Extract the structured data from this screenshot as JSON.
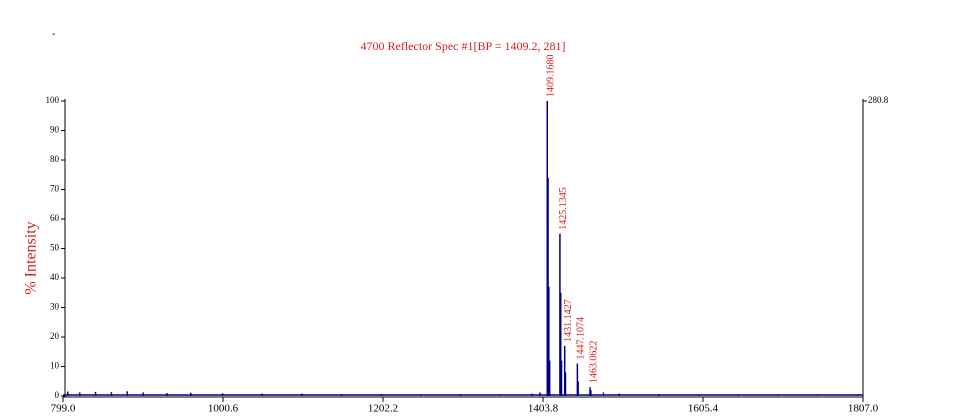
{
  "corner_text": "-",
  "chart_data": {
    "type": "spectrum",
    "title": "4700 Reflector Spec #1[BP = 1409.2, 281]",
    "ylabel": "% Intensity",
    "color": "#000080",
    "x": [
      805,
      820,
      840,
      860,
      880,
      900,
      930,
      960,
      1000,
      1050,
      1100,
      1150,
      1200,
      1250,
      1300,
      1350,
      1390,
      1400,
      1409.168,
      1410.17,
      1411.17,
      1412.17,
      1425.1345,
      1426.13,
      1427.13,
      1431.1427,
      1432.14,
      1447.1074,
      1448.11,
      1463.0622,
      1464.06,
      1480,
      1500,
      1550,
      1600,
      1650,
      1700,
      1750,
      1800
    ],
    "values": [
      1.5,
      1.2,
      1.4,
      1.3,
      1.6,
      1.2,
      1.0,
      1.1,
      0.9,
      0.8,
      0.8,
      0.6,
      0.6,
      0.5,
      0.6,
      0.5,
      0.8,
      1.2,
      100,
      74,
      37,
      12,
      55,
      35,
      12,
      17,
      8,
      11,
      5,
      3,
      2,
      1.2,
      0.8,
      0.6,
      0.5,
      0.4,
      0.3,
      0.3,
      0.3
    ],
    "annotations": [
      {
        "x": 1409.168,
        "y": 100,
        "text": "1409.1680"
      },
      {
        "x": 1425.1345,
        "y": 55,
        "text": "1425.1345"
      },
      {
        "x": 1431.1427,
        "y": 17,
        "text": "1431.1427"
      },
      {
        "x": 1447.1074,
        "y": 11,
        "text": "1447.1074"
      },
      {
        "x": 1463.0622,
        "y": 3,
        "text": "1463.0622"
      }
    ],
    "xlim": [
      799.0,
      1807.0
    ],
    "xticks": [
      {
        "value": 799.0,
        "label": "799.0"
      },
      1000.6,
      1202.2,
      1403.8,
      1605.4,
      {
        "value": 1807.0,
        "label": "1807.0"
      }
    ],
    "ylim": [
      0,
      100
    ],
    "yticks": [
      0,
      10,
      20,
      30,
      40,
      50,
      60,
      70,
      80,
      90,
      100
    ],
    "y2lim": [
      0,
      280.8
    ],
    "y2ticks": [
      280.8
    ]
  }
}
